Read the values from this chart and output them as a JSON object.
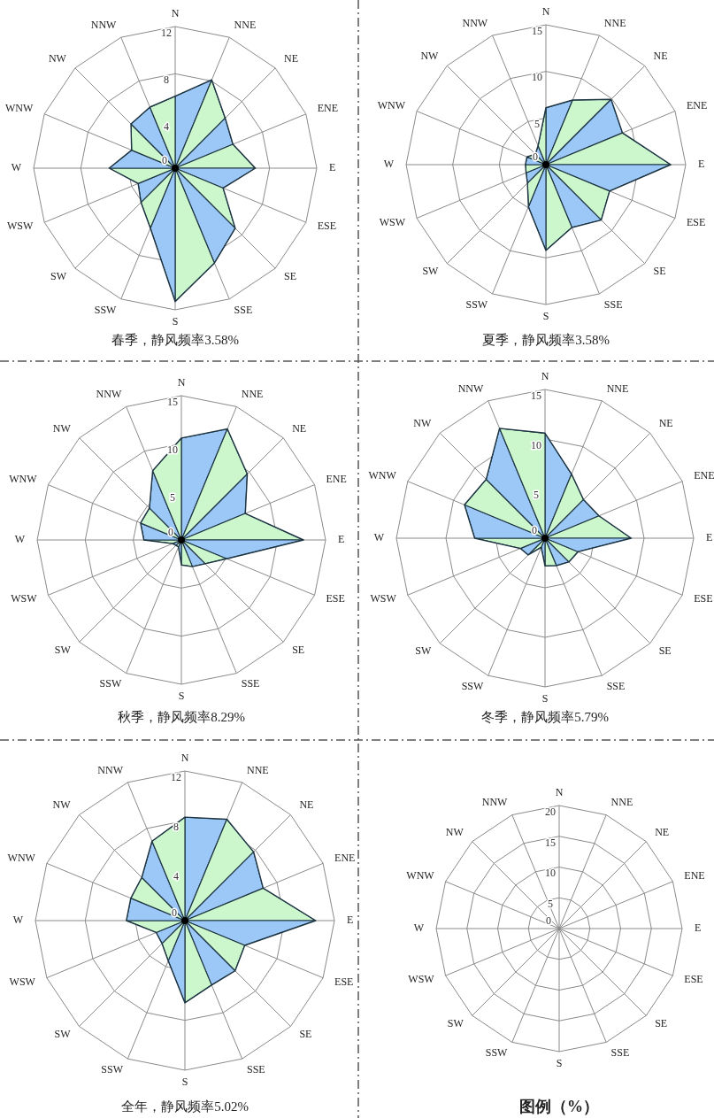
{
  "chart_data": [
    {
      "type": "radar",
      "title": "春季，静风频率3.58%",
      "categories": [
        "N",
        "NNE",
        "NE",
        "ENE",
        "E",
        "ESE",
        "SE",
        "SSE",
        "S",
        "SSW",
        "SW",
        "WSW",
        "W",
        "WNW",
        "NW",
        "NNW"
      ],
      "ylim": [
        0,
        12
      ],
      "yticks": [
        0,
        4,
        8,
        12
      ],
      "series": [
        {
          "values": [
            6.1,
            8.1,
            6.0,
            5.3,
            6.8,
            4.4,
            7.2,
            8.7,
            11.3,
            5.5,
            4.1,
            3.4,
            5.6,
            4.0,
            5.3,
            5.6
          ],
          "colors": [
            "#9cc8f8",
            "#ccf7cc",
            "#9cc8f8",
            "#ccf7cc",
            "#9cc8f8",
            "#ccf7cc",
            "#9cc8f8",
            "#ccf7cc",
            "#9cc8f8",
            "#ccf7cc",
            "#9cc8f8",
            "#ccf7cc",
            "#9cc8f8",
            "#ccf7cc",
            "#9cc8f8",
            "#ccf7cc"
          ]
        }
      ]
    },
    {
      "type": "radar",
      "title": "夏季，静风频率3.58%",
      "categories": [
        "N",
        "NNE",
        "NE",
        "ENE",
        "E",
        "ESE",
        "SE",
        "SSE",
        "S",
        "SSW",
        "SW",
        "WSW",
        "W",
        "WNW",
        "NW",
        "NNW"
      ],
      "ylim": [
        0,
        15
      ],
      "yticks": [
        0,
        5,
        10,
        15
      ],
      "series": [
        {
          "values": [
            6.1,
            7.5,
            9.9,
            8.9,
            13.4,
            7.4,
            8.4,
            7.3,
            9.2,
            4.9,
            2.8,
            2.3,
            2.2,
            2.2,
            1.6,
            2.2
          ],
          "colors": [
            "#9cc8f8",
            "#ccf7cc",
            "#9cc8f8",
            "#ccf7cc",
            "#9cc8f8",
            "#ccf7cc",
            "#9cc8f8",
            "#ccf7cc",
            "#9cc8f8",
            "#ccf7cc",
            "#9cc8f8",
            "#ccf7cc",
            "#9cc8f8",
            "#ccf7cc",
            "#9cc8f8",
            "#ccf7cc"
          ]
        }
      ]
    },
    {
      "type": "radar",
      "title": "秋季，静风频率8.29%",
      "categories": [
        "N",
        "NNE",
        "NE",
        "ENE",
        "E",
        "ESE",
        "SE",
        "SSE",
        "S",
        "SSW",
        "SW",
        "WSW",
        "W",
        "WNW",
        "NW",
        "NNW"
      ],
      "ylim": [
        0,
        15
      ],
      "yticks": [
        0,
        5,
        10,
        15
      ],
      "series": [
        {
          "values": [
            10.6,
            12.5,
            9.7,
            7.2,
            12.7,
            5.1,
            3.5,
            3.0,
            2.6,
            0.8,
            0.8,
            1.0,
            3.9,
            4.6,
            4.7,
            7.8
          ],
          "colors": [
            "#9cc8f8",
            "#ccf7cc",
            "#9cc8f8",
            "#ccf7cc",
            "#9cc8f8",
            "#ccf7cc",
            "#9cc8f8",
            "#ccf7cc",
            "#9cc8f8",
            "#ccf7cc",
            "#9cc8f8",
            "#ccf7cc",
            "#9cc8f8",
            "#ccf7cc",
            "#9cc8f8",
            "#ccf7cc"
          ]
        }
      ]
    },
    {
      "type": "radar",
      "title": "冬季，静风频率5.79%",
      "categories": [
        "N",
        "NNE",
        "NE",
        "ENE",
        "E",
        "ESE",
        "SE",
        "SSE",
        "S",
        "SSW",
        "SW",
        "WSW",
        "W",
        "WNW",
        "NW",
        "NNW"
      ],
      "ylim": [
        0,
        15
      ],
      "yticks": [
        0,
        5,
        10,
        15
      ],
      "series": [
        {
          "values": [
            10.6,
            7.0,
            5.5,
            5.9,
            8.7,
            3.6,
            3.4,
            3.0,
            2.8,
            1.0,
            2.4,
            2.7,
            7.1,
            8.8,
            8.4,
            12.0
          ],
          "colors": [
            "#9cc8f8",
            "#ccf7cc",
            "#9cc8f8",
            "#ccf7cc",
            "#9cc8f8",
            "#ccf7cc",
            "#9cc8f8",
            "#ccf7cc",
            "#9cc8f8",
            "#ccf7cc",
            "#9cc8f8",
            "#ccf7cc",
            "#9cc8f8",
            "#ccf7cc",
            "#9cc8f8",
            "#ccf7cc"
          ]
        }
      ]
    },
    {
      "type": "radar",
      "title": "全年，静风频率5.02%",
      "categories": [
        "N",
        "NNE",
        "NE",
        "ENE",
        "E",
        "ESE",
        "SE",
        "SSE",
        "S",
        "SSW",
        "SW",
        "WSW",
        "W",
        "WNW",
        "NW",
        "NNW"
      ],
      "ylim": [
        0,
        12
      ],
      "yticks": [
        0,
        4,
        8,
        12
      ],
      "series": [
        {
          "values": [
            8.3,
            8.8,
            7.8,
            6.8,
            10.5,
            5.2,
            5.7,
            5.6,
            6.6,
            3.5,
            2.6,
            2.5,
            4.7,
            4.7,
            4.9,
            6.9
          ],
          "colors": [
            "#9cc8f8",
            "#ccf7cc",
            "#9cc8f8",
            "#ccf7cc",
            "#9cc8f8",
            "#ccf7cc",
            "#9cc8f8",
            "#ccf7cc",
            "#9cc8f8",
            "#ccf7cc",
            "#9cc8f8",
            "#ccf7cc",
            "#9cc8f8",
            "#ccf7cc",
            "#9cc8f8",
            "#ccf7cc"
          ]
        }
      ]
    },
    {
      "type": "radar",
      "title": "图例（%）",
      "categories": [
        "N",
        "NNE",
        "NE",
        "ENE",
        "E",
        "ESE",
        "SE",
        "SSE",
        "S",
        "SSW",
        "SW",
        "WSW",
        "W",
        "WNW",
        "NW",
        "NNW"
      ],
      "ylim": [
        0,
        20
      ],
      "yticks": [
        0,
        5,
        10,
        15,
        20
      ]
    }
  ]
}
